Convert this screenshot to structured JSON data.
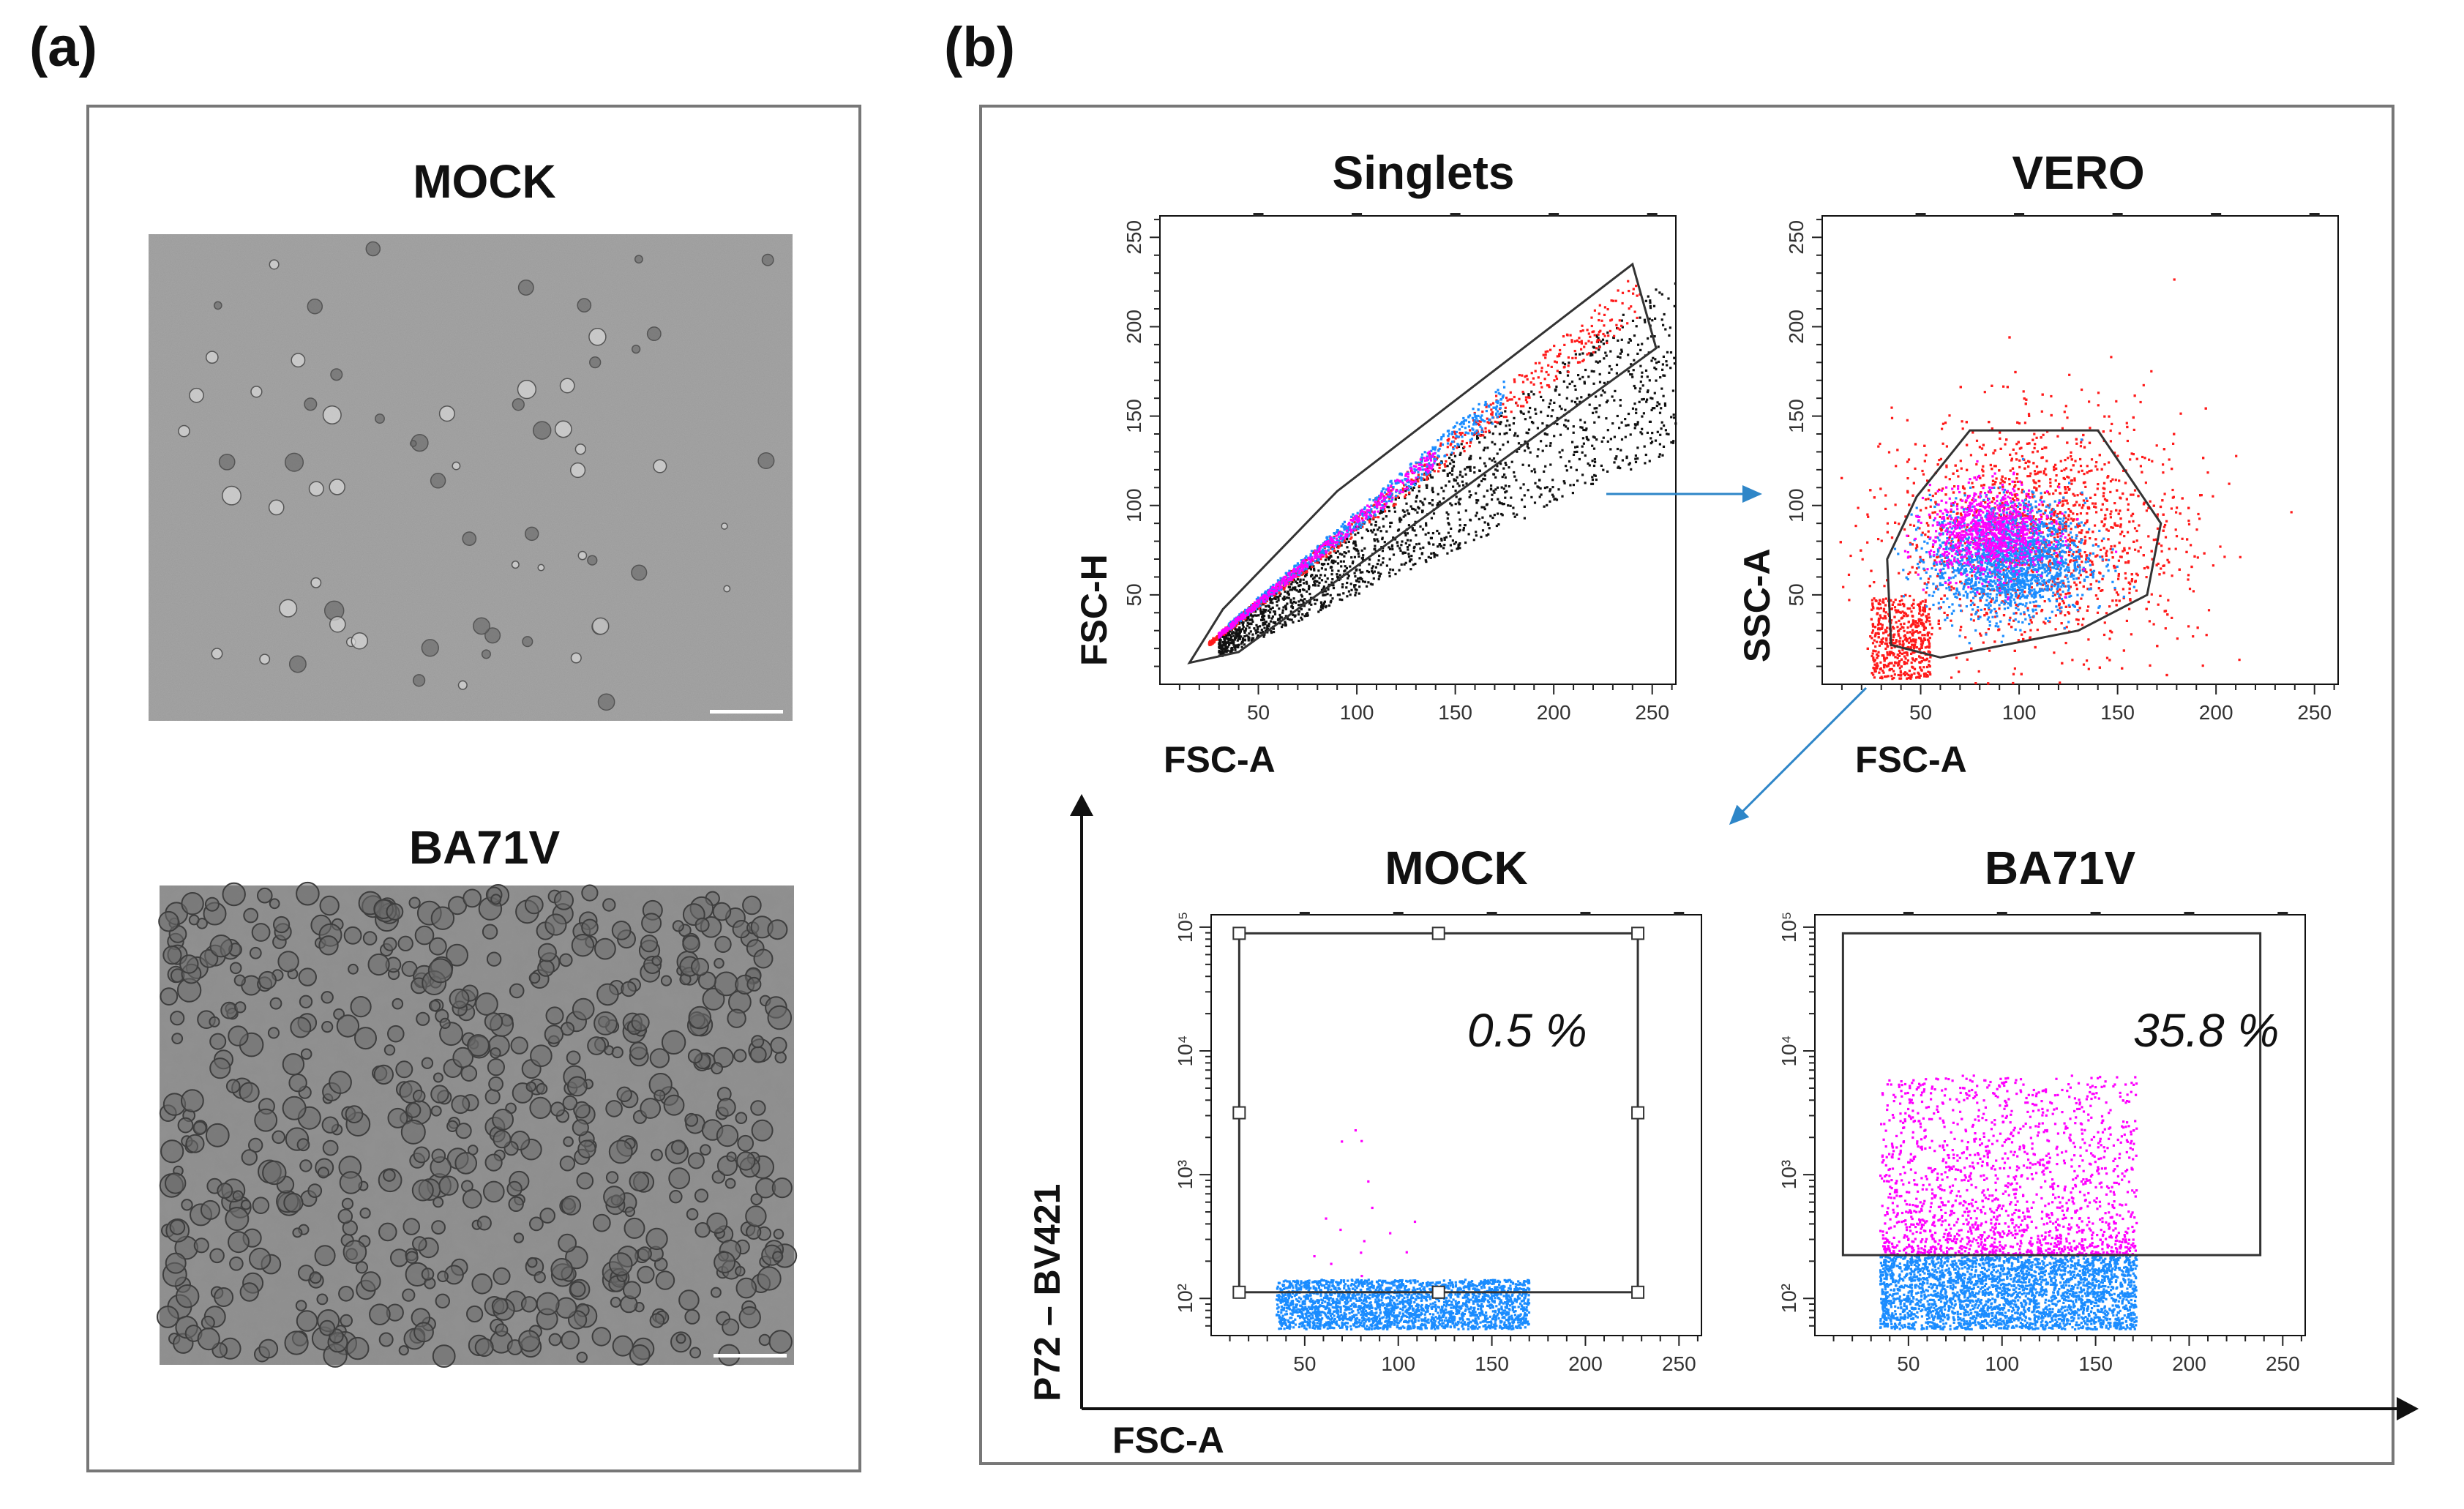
{
  "panels": {
    "a_label": "(a)",
    "b_label": "(b)"
  },
  "micrographs": [
    {
      "title": "MOCK",
      "texture": "sparse"
    },
    {
      "title": "BA71V",
      "texture": "dense"
    }
  ],
  "colors": {
    "red": "#ff1a1a",
    "blue": "#1a8cff",
    "magenta": "#ff00ff",
    "black": "#111111",
    "frame": "#777777",
    "arrow": "#2e86c8"
  },
  "chart_data": [
    {
      "id": "singlets",
      "type": "scatter",
      "title": "Singlets",
      "xlabel": "FSC-A",
      "ylabel": "FSC-H",
      "xticks": [
        "50",
        "100",
        "150",
        "200",
        "250"
      ],
      "yticks": [
        "50",
        "100",
        "150",
        "200",
        "250"
      ],
      "xlim": [
        0,
        262
      ],
      "ylim": [
        0,
        262
      ],
      "gate": [
        [
          15,
          12
        ],
        [
          32,
          42
        ],
        [
          90,
          108
        ],
        [
          240,
          235
        ],
        [
          252,
          188
        ],
        [
          40,
          18
        ]
      ],
      "series": [
        {
          "color": "black",
          "count": 1700,
          "x_range": [
            30,
            262
          ],
          "y_over_x": [
            0.5,
            0.88
          ]
        },
        {
          "color": "red",
          "count": 650,
          "x_range": [
            25,
            245
          ],
          "y_over_x": [
            0.84,
            0.95
          ]
        },
        {
          "color": "blue",
          "count": 650,
          "x_range": [
            35,
            175
          ],
          "y_over_x": [
            0.86,
            0.97
          ]
        },
        {
          "color": "magenta",
          "count": 450,
          "x_range": [
            30,
            140
          ],
          "y_over_x": [
            0.87,
            0.95
          ]
        }
      ]
    },
    {
      "id": "vero",
      "type": "scatter",
      "title": "VERO",
      "xlabel": "FSC-A",
      "ylabel": "SSC-A",
      "xticks": [
        "50",
        "100",
        "150",
        "200",
        "250"
      ],
      "yticks": [
        "50",
        "100",
        "150",
        "200",
        "250"
      ],
      "xlim": [
        0,
        262
      ],
      "ylim": [
        0,
        262
      ],
      "gate": [
        [
          35,
          22
        ],
        [
          33,
          70
        ],
        [
          48,
          105
        ],
        [
          75,
          142
        ],
        [
          140,
          142
        ],
        [
          172,
          90
        ],
        [
          165,
          50
        ],
        [
          130,
          30
        ],
        [
          60,
          15
        ]
      ],
      "series": [
        {
          "color": "red",
          "count": 2600,
          "center": [
            110,
            85
          ],
          "spread": [
            60,
            55
          ]
        },
        {
          "color": "blue",
          "count": 1900,
          "center": [
            95,
            70
          ],
          "spread": [
            32,
            26
          ]
        },
        {
          "color": "magenta",
          "count": 900,
          "center": [
            85,
            85
          ],
          "spread": [
            25,
            20
          ]
        }
      ]
    },
    {
      "id": "mock",
      "type": "scatter",
      "title": "MOCK",
      "xlabel": "",
      "ylabel": "",
      "xticks": [
        "50",
        "100",
        "150",
        "200",
        "250"
      ],
      "yticks": [
        "10²",
        "10³",
        "10⁴",
        "10⁵"
      ],
      "xlim": [
        0,
        262
      ],
      "ylim_log10": [
        1.7,
        5.1
      ],
      "gate": {
        "x": [
          15,
          228
        ],
        "log10_y": [
          2.05,
          4.95
        ]
      },
      "percent": "0.5 %",
      "series": [
        {
          "color": "blue",
          "count": 2400,
          "x_range": [
            35,
            170
          ],
          "log10_y_range": [
            1.75,
            2.15
          ]
        },
        {
          "color": "magenta",
          "count": 15,
          "x_range": [
            50,
            110
          ],
          "log10_y_range": [
            2.1,
            3.4
          ]
        }
      ]
    },
    {
      "id": "ba71v",
      "type": "scatter",
      "title": "BA71V",
      "xlabel": "",
      "ylabel": "",
      "xticks": [
        "50",
        "100",
        "150",
        "200",
        "250"
      ],
      "yticks": [
        "10²",
        "10³",
        "10⁴",
        "10⁵"
      ],
      "xlim": [
        0,
        262
      ],
      "ylim_log10": [
        1.7,
        5.1
      ],
      "gate": {
        "x": [
          15,
          238
        ],
        "log10_y": [
          2.35,
          4.95
        ]
      },
      "percent": "35.8 %",
      "series": [
        {
          "color": "blue",
          "count": 3000,
          "x_range": [
            35,
            172
          ],
          "log10_y_range": [
            1.75,
            2.35
          ]
        },
        {
          "color": "magenta",
          "count": 1700,
          "x_range": [
            35,
            172
          ],
          "log10_y_range": [
            2.35,
            3.8
          ]
        }
      ]
    }
  ],
  "shared_axes": {
    "ylabel": "P72 – BV421",
    "xlabel": "FSC-A"
  }
}
